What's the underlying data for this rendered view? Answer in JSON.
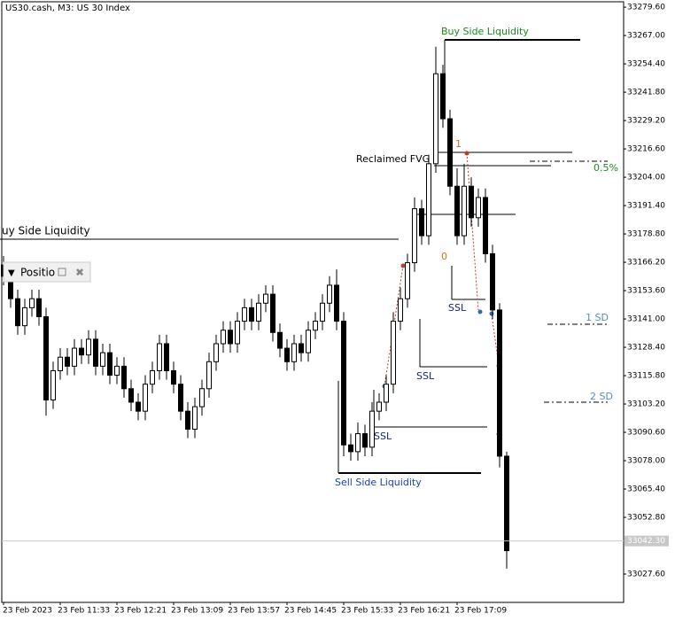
{
  "chart_data": {
    "type": "candlestick",
    "title": "US30.cash, M3:  US 30 Index",
    "categories": [
      "23 Feb 2023",
      null,
      null,
      null,
      null,
      null,
      null,
      null,
      "23 Feb 11:33",
      null,
      null,
      null,
      null,
      null,
      null,
      null,
      "23 Feb 12:21",
      null,
      null,
      null,
      null,
      null,
      null,
      null,
      "23 Feb 13:09",
      null,
      null,
      null,
      null,
      null,
      null,
      null,
      "23 Feb 13:57",
      null,
      null,
      null,
      null,
      null,
      null,
      null,
      "23 Feb 14:45",
      null,
      null,
      null,
      null,
      null,
      null,
      null,
      "23 Feb 15:33",
      null,
      null,
      null,
      null,
      null,
      null,
      null,
      "23 Feb 16:21",
      null,
      null,
      null,
      null,
      null,
      null,
      null,
      "23 Feb 17:09",
      null,
      null,
      null,
      null,
      null,
      null,
      null
    ],
    "open": [
      33165,
      33160,
      33150,
      33138,
      33146,
      33150,
      33142,
      33105,
      33118,
      33124,
      33120,
      33128,
      33125,
      33132,
      33120,
      33126,
      33116,
      33120,
      33110,
      33104,
      33100,
      33112,
      33118,
      33130,
      33118,
      33112,
      33100,
      33092,
      33102,
      33110,
      33122,
      33130,
      33136,
      33130,
      33140,
      33146,
      33140,
      33148,
      33152,
      33135,
      33128,
      33122,
      33130,
      33126,
      33136,
      33140,
      33148,
      33156,
      33140,
      33085,
      33082,
      33090,
      33084,
      33100,
      33104,
      33112,
      33140,
      33150,
      33166,
      33190,
      33178,
      33210,
      33250,
      33230,
      33200,
      33178,
      33200,
      33186,
      33195,
      33170,
      33145,
      33080
    ],
    "high": [
      33169,
      33164,
      33154,
      33150,
      33154,
      33154,
      33146,
      33122,
      33128,
      33128,
      33132,
      33132,
      33136,
      33136,
      33130,
      33130,
      33124,
      33124,
      33114,
      33108,
      33116,
      33122,
      33134,
      33134,
      33122,
      33116,
      33104,
      33106,
      33114,
      33126,
      33134,
      33140,
      33140,
      33144,
      33150,
      33150,
      33152,
      33156,
      33156,
      33139,
      33132,
      33134,
      33134,
      33140,
      33144,
      33152,
      33160,
      33163,
      33144,
      33090,
      33095,
      33094,
      33104,
      33108,
      33116,
      33144,
      33155,
      33170,
      33195,
      33194,
      33214,
      33262,
      33254,
      33234,
      33208,
      33210,
      33204,
      33199,
      33199,
      33174,
      33148,
      33082
    ],
    "low": [
      33156,
      33146,
      33134,
      33134,
      33142,
      33138,
      33098,
      33101,
      33114,
      33116,
      33116,
      33121,
      33121,
      33116,
      33116,
      33112,
      33112,
      33106,
      33100,
      33096,
      33096,
      33108,
      33114,
      33114,
      33108,
      33096,
      33088,
      33088,
      33098,
      33106,
      33118,
      33126,
      33126,
      33126,
      33136,
      33136,
      33136,
      33144,
      33131,
      33124,
      33118,
      33118,
      33122,
      33122,
      33132,
      33136,
      33144,
      33136,
      33080,
      33078,
      33078,
      33080,
      33080,
      33096,
      33100,
      33108,
      33136,
      33146,
      33162,
      33174,
      33174,
      33206,
      33226,
      33196,
      33174,
      33174,
      33182,
      33182,
      33166,
      33141,
      33075,
      33030
    ],
    "close": [
      33160,
      33150,
      33138,
      33146,
      33150,
      33142,
      33105,
      33118,
      33124,
      33120,
      33128,
      33125,
      33132,
      33120,
      33126,
      33116,
      33120,
      33110,
      33104,
      33100,
      33112,
      33118,
      33130,
      33118,
      33112,
      33100,
      33092,
      33102,
      33110,
      33122,
      33130,
      33136,
      33130,
      33140,
      33146,
      33140,
      33148,
      33152,
      33135,
      33128,
      33122,
      33130,
      33126,
      33136,
      33140,
      33148,
      33156,
      33140,
      33085,
      33082,
      33090,
      33084,
      33100,
      33104,
      33112,
      33140,
      33150,
      33166,
      33190,
      33178,
      33210,
      33250,
      33230,
      33200,
      33178,
      33200,
      33186,
      33195,
      33170,
      33145,
      33080,
      33038
    ],
    "color": "#000000",
    "ylim": [
      33015,
      33282
    ],
    "yticks": [
      {
        "value": 33279.6,
        "label": "33279.60"
      },
      {
        "value": 33267.0,
        "label": "33267.00"
      },
      {
        "value": 33254.4,
        "label": "33254.40"
      },
      {
        "value": 33241.8,
        "label": "33241.80"
      },
      {
        "value": 33229.2,
        "label": "33229.20"
      },
      {
        "value": 33216.6,
        "label": "33216.60"
      },
      {
        "value": 33204.0,
        "label": "33204.00"
      },
      {
        "value": 33191.4,
        "label": "33191.40"
      },
      {
        "value": 33178.8,
        "label": "33178.80"
      },
      {
        "value": 33166.2,
        "label": "33166.20"
      },
      {
        "value": 33153.6,
        "label": "33153.60"
      },
      {
        "value": 33141.0,
        "label": "33141.00"
      },
      {
        "value": 33128.4,
        "label": "33128.40"
      },
      {
        "value": 33115.8,
        "label": "33115.80"
      },
      {
        "value": 33103.2,
        "label": "33103.20"
      },
      {
        "value": 33090.6,
        "label": "33090.60"
      },
      {
        "value": 33078.0,
        "label": "33078.00"
      },
      {
        "value": 33065.4,
        "label": "33065.40"
      },
      {
        "value": 33052.8,
        "label": "33052.80"
      },
      {
        "value": 33027.6,
        "label": "33027.60"
      }
    ],
    "current_price": {
      "value": 33042.3,
      "label": "33042.30"
    },
    "annotations": {
      "buy_side_top": "Buy Side Liquidity",
      "buy_side_left": "uy Side Liquidity",
      "reclaimed": "Reclaimed FVG",
      "fib_1": "1",
      "fib_0": "0",
      "half": "0.5%",
      "sd1": "1 SD",
      "sd2": "2 SD",
      "ssl_a": "SSL",
      "ssl_b": "SSL",
      "ssl_c": "SSL",
      "sell_side": "Sell Side Liquidity"
    },
    "panel": "Positio"
  }
}
